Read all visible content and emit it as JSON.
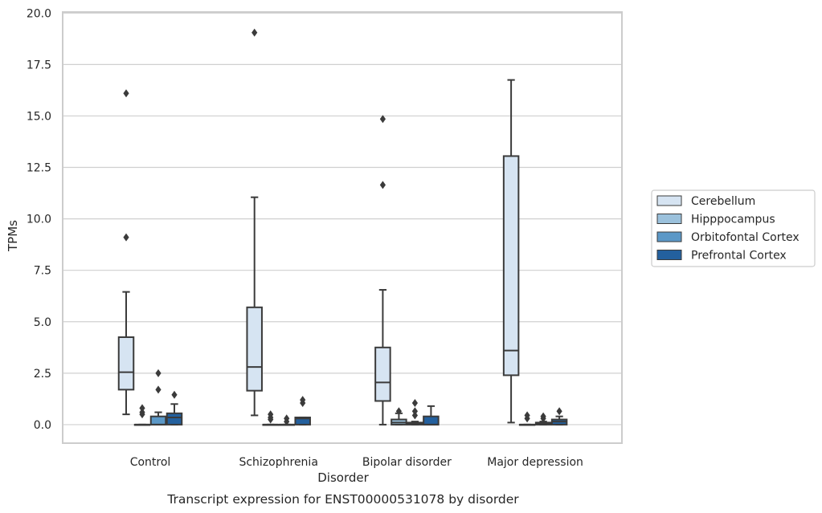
{
  "chart_data": {
    "type": "box",
    "caption": "Transcript expression for ENST00000531078 by disorder",
    "xlabel": "Disorder",
    "ylabel": "TPMs",
    "ylim": [
      -0.9,
      20.05
    ],
    "yticks": [
      0.0,
      2.5,
      5.0,
      7.5,
      10.0,
      12.5,
      15.0,
      17.5,
      20.0
    ],
    "ytick_labels": [
      "0.0",
      "2.5",
      "5.0",
      "7.5",
      "10.0",
      "12.5",
      "15.0",
      "17.5",
      "20.0"
    ],
    "grid": "horizontal",
    "legend_position": "right-center",
    "categories": [
      "Control",
      "Schizophrenia",
      "Bipolar disorder",
      "Major depression"
    ],
    "series": [
      {
        "name": "Cerebellum",
        "color": "#d6e4f2",
        "boxes": [
          {
            "whislo": 0.5,
            "q1": 1.7,
            "med": 2.55,
            "q3": 4.25,
            "whishi": 6.45,
            "fliers": [
              9.1,
              16.1
            ]
          },
          {
            "whislo": 0.45,
            "q1": 1.65,
            "med": 2.8,
            "q3": 5.7,
            "whishi": 11.05,
            "fliers": [
              19.05
            ]
          },
          {
            "whislo": 0.0,
            "q1": 1.15,
            "med": 2.05,
            "q3": 3.75,
            "whishi": 6.55,
            "fliers": [
              11.65,
              14.85
            ]
          },
          {
            "whislo": 0.1,
            "q1": 2.4,
            "med": 3.6,
            "q3": 13.05,
            "whishi": 16.75,
            "fliers": []
          }
        ]
      },
      {
        "name": "Hipppocampus",
        "color": "#9bc1dc",
        "boxes": [
          {
            "whislo": 0.0,
            "q1": 0.0,
            "med": 0.0,
            "q3": 0.0,
            "whishi": 0.0,
            "fliers": [
              0.5,
              0.6,
              0.8
            ]
          },
          {
            "whislo": 0.0,
            "q1": 0.0,
            "med": 0.0,
            "q3": 0.0,
            "whishi": 0.0,
            "fliers": [
              0.25,
              0.35,
              0.5
            ]
          },
          {
            "whislo": 0.0,
            "q1": 0.0,
            "med": 0.1,
            "q3": 0.25,
            "whishi": 0.55,
            "fliers": [
              0.65
            ]
          },
          {
            "whislo": 0.0,
            "q1": 0.0,
            "med": 0.0,
            "q3": 0.0,
            "whishi": 0.0,
            "fliers": [
              0.3,
              0.45
            ]
          }
        ]
      },
      {
        "name": "Orbitofontal Cortex",
        "color": "#5b98c7",
        "boxes": [
          {
            "whislo": 0.0,
            "q1": 0.0,
            "med": 0.0,
            "q3": 0.4,
            "whishi": 0.6,
            "fliers": [
              1.7,
              2.5
            ]
          },
          {
            "whislo": 0.0,
            "q1": 0.0,
            "med": 0.0,
            "q3": 0.0,
            "whishi": 0.0,
            "fliers": [
              0.15,
              0.3
            ]
          },
          {
            "whislo": 0.0,
            "q1": 0.0,
            "med": 0.05,
            "q3": 0.1,
            "whishi": 0.15,
            "fliers": [
              0.45,
              0.65,
              1.05
            ]
          },
          {
            "whislo": 0.0,
            "q1": 0.0,
            "med": 0.05,
            "q3": 0.1,
            "whishi": 0.15,
            "fliers": [
              0.3,
              0.4
            ]
          }
        ]
      },
      {
        "name": "Prefrontal Cortex",
        "color": "#23609e",
        "boxes": [
          {
            "whislo": 0.0,
            "q1": 0.0,
            "med": 0.35,
            "q3": 0.55,
            "whishi": 1.0,
            "fliers": [
              1.45
            ]
          },
          {
            "whislo": 0.0,
            "q1": 0.0,
            "med": 0.3,
            "q3": 0.35,
            "whishi": 0.35,
            "fliers": [
              1.05,
              1.2
            ]
          },
          {
            "whislo": 0.0,
            "q1": 0.0,
            "med": 0.0,
            "q3": 0.4,
            "whishi": 0.9,
            "fliers": []
          },
          {
            "whislo": 0.0,
            "q1": 0.0,
            "med": 0.15,
            "q3": 0.25,
            "whishi": 0.4,
            "fliers": [
              0.65
            ]
          }
        ]
      }
    ]
  }
}
